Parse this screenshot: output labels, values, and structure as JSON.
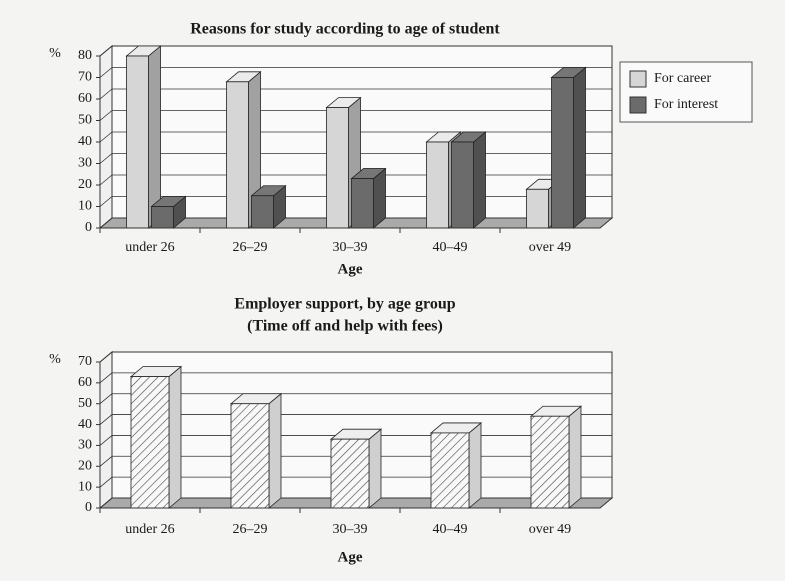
{
  "chart_data": [
    {
      "type": "bar",
      "title": "Reasons for study according to age of student",
      "y_unit": "%",
      "x_label": "Age",
      "categories": [
        "under 26",
        "26–29",
        "30–39",
        "40–49",
        "over 49"
      ],
      "series": [
        {
          "name": "For career",
          "color": "#d6d6d6",
          "values": [
            80,
            68,
            56,
            40,
            18
          ]
        },
        {
          "name": "For interest",
          "color": "#6b6b6b",
          "values": [
            10,
            15,
            23,
            40,
            70
          ]
        }
      ],
      "ylim": [
        0,
        80
      ],
      "yticks": [
        0,
        10,
        20,
        30,
        40,
        50,
        60,
        70,
        80
      ],
      "grid": true,
      "legend": "right"
    },
    {
      "type": "bar",
      "title": "Employer support, by age group",
      "subtitle": "(Time off and help with fees)",
      "y_unit": "%",
      "x_label": "Age",
      "categories": [
        "under 26",
        "26–29",
        "30–39",
        "40–49",
        "over 49"
      ],
      "series": [
        {
          "name": null,
          "color": "hatch",
          "values": [
            63,
            50,
            33,
            36,
            44
          ]
        }
      ],
      "ylim": [
        0,
        70
      ],
      "yticks": [
        0,
        10,
        20,
        30,
        40,
        50,
        60,
        70
      ],
      "grid": true
    }
  ]
}
